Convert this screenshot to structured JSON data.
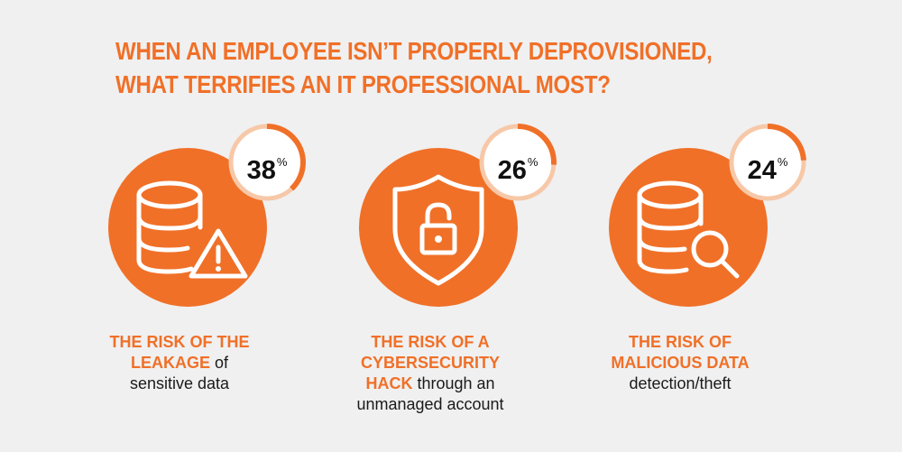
{
  "title": {
    "line1": "WHEN AN EMPLOYEE ISN’T PROPERLY DEPROVISIONED,",
    "line2": "WHAT TERRIFIES AN IT PROFESSIONAL MOST?"
  },
  "colors": {
    "accent": "#f07028",
    "ring_track": "#f7c8a8",
    "background": "#f0f0f0",
    "text": "#1a1a1a"
  },
  "stats": [
    {
      "value": "38",
      "unit": "%",
      "icon": "database-warning-icon",
      "label_line1": "THE RISK OF THE",
      "label_line2_lead": "LEAKAGE",
      "label_line2_rest": " of",
      "label_line3": "sensitive data"
    },
    {
      "value": "26",
      "unit": "%",
      "icon": "shield-unlocked-icon",
      "label_line1": "THE RISK OF A",
      "label_line2": "CYBERSECURITY",
      "label_line3_lead": "HACK",
      "label_line3_rest": " through an",
      "label_line4": "unmanaged account"
    },
    {
      "value": "24",
      "unit": "%",
      "icon": "database-search-icon",
      "label_line1": "THE RISK OF",
      "label_line2": "MALICIOUS DATA",
      "label_line3": "detection/theft"
    }
  ],
  "chart_data": {
    "type": "bar",
    "title": "WHEN AN EMPLOYEE ISN’T PROPERLY DEPROVISIONED, WHAT TERRIFIES AN IT PROFESSIONAL MOST?",
    "categories": [
      "THE RISK OF THE LEAKAGE of sensitive data",
      "THE RISK OF A CYBERSECURITY HACK through an unmanaged account",
      "THE RISK OF MALICIOUS DATA detection/theft"
    ],
    "values": [
      38,
      26,
      24
    ],
    "unit": "%",
    "ylim": [
      0,
      100
    ]
  }
}
